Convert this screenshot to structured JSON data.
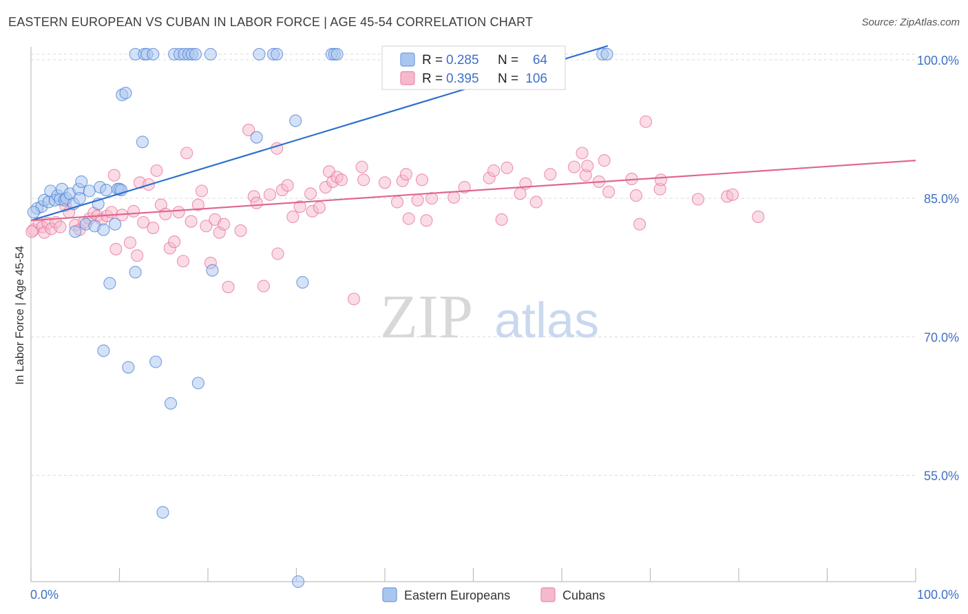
{
  "title": "EASTERN EUROPEAN VS CUBAN IN LABOR FORCE | AGE 45-54 CORRELATION CHART",
  "source": "Source: ZipAtlas.com",
  "watermark": {
    "zip": "ZIP",
    "atlas": "atlas"
  },
  "colors": {
    "blue": "#4a7fd4",
    "blue_fill": "#a9c6ef",
    "blue_line": "#2f6fcf",
    "pink": "#e86f9a",
    "pink_fill": "#f5b9cc",
    "pink_line": "#e0668f",
    "axis_label": "#3f6fc6",
    "grid": "#d9d9d9"
  },
  "legend": {
    "rows": [
      {
        "r_label": "R =",
        "r_value": "0.285",
        "n_label": "N =",
        "n_value": "64"
      },
      {
        "r_label": "R =",
        "r_value": "0.395",
        "n_label": "N =",
        "n_value": "106"
      }
    ]
  },
  "bottom_legend": [
    "Eastern Europeans",
    "Cubans"
  ],
  "chart_data": {
    "type": "scatter",
    "title": "EASTERN EUROPEAN VS CUBAN IN LABOR FORCE | AGE 45-54 CORRELATION CHART",
    "xlabel": "",
    "ylabel": "In Labor Force | Age 45-54",
    "xlim": [
      0,
      100
    ],
    "ylim": [
      43.5,
      102
    ],
    "x_tick_labels": [
      "0.0%",
      "100.0%"
    ],
    "y_ticks": [
      55,
      70,
      85,
      100
    ],
    "y_tick_labels": [
      "55.0%",
      "70.0%",
      "85.0%",
      "100.0%"
    ],
    "grid": true,
    "legend_position": "top-center",
    "series": [
      {
        "name": "Eastern Europeans",
        "R": 0.285,
        "N": 64,
        "trend": {
          "x0": 0,
          "y0": 82.6,
          "x1": 65.2,
          "y1": 101.5
        },
        "points": [
          [
            0.7,
            83.9
          ],
          [
            1.2,
            84.1
          ],
          [
            1.5,
            84.8
          ],
          [
            2.0,
            84.6
          ],
          [
            2.2,
            85.8
          ],
          [
            2.7,
            84.8
          ],
          [
            3.0,
            85.3
          ],
          [
            3.3,
            84.9
          ],
          [
            3.5,
            86.0
          ],
          [
            3.8,
            84.8
          ],
          [
            4.0,
            85.0
          ],
          [
            4.4,
            85.5
          ],
          [
            4.8,
            84.4
          ],
          [
            5.0,
            81.4
          ],
          [
            5.4,
            86.0
          ],
          [
            5.5,
            85.0
          ],
          [
            5.7,
            86.8
          ],
          [
            6.2,
            82.2
          ],
          [
            6.6,
            85.8
          ],
          [
            7.2,
            82.0
          ],
          [
            7.6,
            84.4
          ],
          [
            7.8,
            86.2
          ],
          [
            8.2,
            81.6
          ],
          [
            8.5,
            85.9
          ],
          [
            8.9,
            75.8
          ],
          [
            8.2,
            68.5
          ],
          [
            9.5,
            82.2
          ],
          [
            9.8,
            86.0
          ],
          [
            10.0,
            86.0
          ],
          [
            10.2,
            85.9
          ],
          [
            10.3,
            96.2
          ],
          [
            10.7,
            96.4
          ],
          [
            11.0,
            66.7
          ],
          [
            11.8,
            77.0
          ],
          [
            11.8,
            100.6
          ],
          [
            12.6,
            91.1
          ],
          [
            12.8,
            100.6
          ],
          [
            13.1,
            100.6
          ],
          [
            13.8,
            100.6
          ],
          [
            14.1,
            67.3
          ],
          [
            14.9,
            51.0
          ],
          [
            15.8,
            62.8
          ],
          [
            16.2,
            100.6
          ],
          [
            16.8,
            100.6
          ],
          [
            17.3,
            100.6
          ],
          [
            17.8,
            100.6
          ],
          [
            18.2,
            100.6
          ],
          [
            18.9,
            65.0
          ],
          [
            18.6,
            100.6
          ],
          [
            20.3,
            100.6
          ],
          [
            20.5,
            77.2
          ],
          [
            25.5,
            91.6
          ],
          [
            25.8,
            100.6
          ],
          [
            27.4,
            100.6
          ],
          [
            27.8,
            100.6
          ],
          [
            29.9,
            93.4
          ],
          [
            30.2,
            43.5
          ],
          [
            30.7,
            75.9
          ],
          [
            34.0,
            100.6
          ],
          [
            34.3,
            100.6
          ],
          [
            34.6,
            100.6
          ],
          [
            64.6,
            100.6
          ],
          [
            65.1,
            100.6
          ],
          [
            0.3,
            83.5
          ]
        ]
      },
      {
        "name": "Cubans",
        "R": 0.395,
        "N": 106,
        "trend": {
          "x0": 0,
          "y0": 82.6,
          "x1": 100,
          "y1": 89.1
        },
        "points": [
          [
            0.3,
            81.6
          ],
          [
            0.9,
            82.3
          ],
          [
            1.3,
            81.9
          ],
          [
            1.5,
            81.3
          ],
          [
            1.9,
            82.3
          ],
          [
            2.3,
            81.7
          ],
          [
            2.8,
            82.4
          ],
          [
            3.3,
            81.9
          ],
          [
            3.9,
            84.2
          ],
          [
            4.3,
            83.5
          ],
          [
            5.0,
            82.1
          ],
          [
            5.5,
            81.6
          ],
          [
            6.0,
            82.4
          ],
          [
            6.6,
            82.8
          ],
          [
            7.1,
            83.4
          ],
          [
            7.5,
            83.1
          ],
          [
            8.0,
            82.7
          ],
          [
            8.6,
            83.1
          ],
          [
            9.1,
            83.5
          ],
          [
            9.4,
            87.5
          ],
          [
            9.6,
            79.5
          ],
          [
            10.3,
            83.2
          ],
          [
            11.2,
            80.2
          ],
          [
            11.6,
            83.6
          ],
          [
            12.0,
            78.8
          ],
          [
            12.3,
            86.7
          ],
          [
            12.7,
            82.4
          ],
          [
            13.3,
            86.5
          ],
          [
            13.8,
            81.8
          ],
          [
            14.2,
            88.0
          ],
          [
            14.7,
            84.3
          ],
          [
            15.2,
            83.3
          ],
          [
            15.7,
            79.6
          ],
          [
            16.2,
            80.3
          ],
          [
            16.7,
            83.5
          ],
          [
            17.2,
            78.2
          ],
          [
            17.6,
            89.9
          ],
          [
            18.1,
            82.5
          ],
          [
            18.9,
            84.3
          ],
          [
            19.3,
            85.8
          ],
          [
            19.8,
            82.0
          ],
          [
            20.3,
            78.0
          ],
          [
            20.8,
            82.7
          ],
          [
            21.3,
            81.3
          ],
          [
            21.8,
            82.2
          ],
          [
            22.3,
            75.4
          ],
          [
            23.7,
            81.5
          ],
          [
            24.6,
            92.4
          ],
          [
            25.2,
            85.2
          ],
          [
            25.5,
            84.5
          ],
          [
            26.3,
            75.5
          ],
          [
            27.0,
            85.4
          ],
          [
            27.8,
            90.4
          ],
          [
            27.9,
            79.0
          ],
          [
            28.4,
            85.9
          ],
          [
            29.0,
            86.4
          ],
          [
            29.6,
            83.0
          ],
          [
            30.4,
            84.1
          ],
          [
            31.6,
            85.5
          ],
          [
            31.8,
            83.6
          ],
          [
            32.6,
            84.0
          ],
          [
            33.3,
            86.2
          ],
          [
            33.7,
            87.9
          ],
          [
            34.1,
            86.8
          ],
          [
            34.6,
            87.3
          ],
          [
            35.1,
            87.0
          ],
          [
            36.5,
            74.1
          ],
          [
            37.4,
            88.4
          ],
          [
            37.6,
            87.0
          ],
          [
            40.0,
            86.7
          ],
          [
            41.4,
            84.6
          ],
          [
            42.0,
            86.9
          ],
          [
            42.4,
            87.6
          ],
          [
            42.7,
            82.8
          ],
          [
            43.7,
            84.8
          ],
          [
            44.2,
            87.0
          ],
          [
            44.7,
            82.6
          ],
          [
            45.3,
            85.0
          ],
          [
            47.8,
            85.1
          ],
          [
            49.0,
            86.2
          ],
          [
            51.8,
            87.2
          ],
          [
            52.3,
            88.0
          ],
          [
            53.2,
            82.7
          ],
          [
            53.8,
            88.3
          ],
          [
            55.3,
            85.5
          ],
          [
            55.9,
            86.6
          ],
          [
            57.1,
            84.6
          ],
          [
            58.7,
            87.6
          ],
          [
            61.4,
            88.4
          ],
          [
            62.3,
            89.9
          ],
          [
            62.7,
            87.5
          ],
          [
            62.9,
            88.5
          ],
          [
            64.2,
            86.8
          ],
          [
            64.8,
            89.1
          ],
          [
            65.3,
            85.7
          ],
          [
            67.9,
            87.1
          ],
          [
            68.4,
            85.3
          ],
          [
            68.8,
            82.2
          ],
          [
            69.5,
            93.3
          ],
          [
            71.1,
            86.0
          ],
          [
            71.2,
            87.0
          ],
          [
            75.4,
            84.9
          ],
          [
            78.7,
            85.2
          ],
          [
            79.3,
            85.4
          ],
          [
            82.2,
            83.0
          ],
          [
            0.1,
            81.4
          ]
        ]
      }
    ]
  }
}
